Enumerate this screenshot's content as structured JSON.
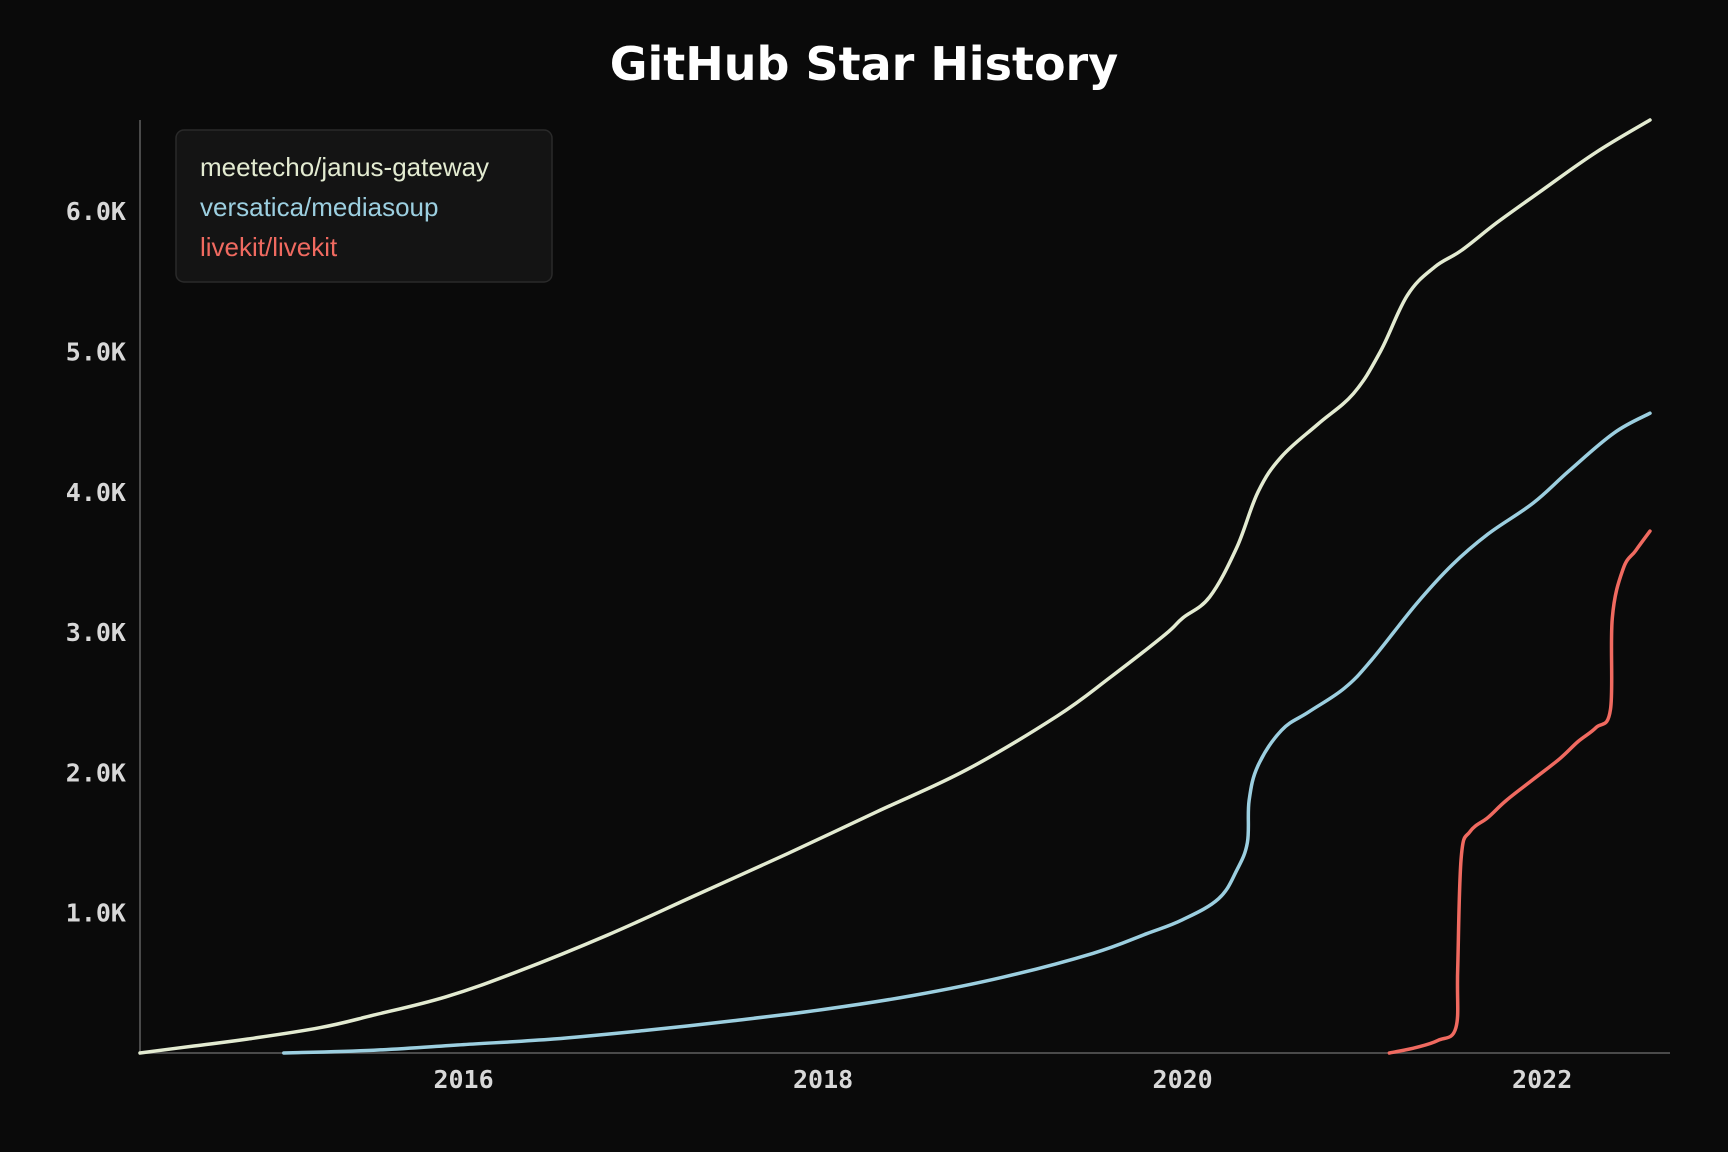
{
  "chart_data": {
    "type": "line",
    "title": "GitHub Star History",
    "xlabel": "",
    "ylabel": "",
    "x_ticks": [
      {
        "value": 2016,
        "label": "2016"
      },
      {
        "value": 2018,
        "label": "2018"
      },
      {
        "value": 2020,
        "label": "2020"
      },
      {
        "value": 2022,
        "label": "2022"
      }
    ],
    "y_ticks": [
      {
        "value": 1000,
        "label": "1.0K"
      },
      {
        "value": 2000,
        "label": "2.0K"
      },
      {
        "value": 3000,
        "label": "3.0K"
      },
      {
        "value": 4000,
        "label": "4.0K"
      },
      {
        "value": 5000,
        "label": "5.0K"
      },
      {
        "value": 6000,
        "label": "6.0K"
      }
    ],
    "xlim": [
      2014.2,
      2022.7
    ],
    "ylim": [
      0,
      6650
    ],
    "legend": "top-left",
    "grid": false,
    "series": [
      {
        "name": "meetecho/janus-gateway",
        "color": "#e3ebd1",
        "points": [
          [
            2014.2,
            0
          ],
          [
            2014.5,
            50
          ],
          [
            2014.8,
            100
          ],
          [
            2015.2,
            180
          ],
          [
            2015.5,
            270
          ],
          [
            2015.9,
            400
          ],
          [
            2016.3,
            580
          ],
          [
            2016.8,
            840
          ],
          [
            2017.3,
            1130
          ],
          [
            2017.8,
            1420
          ],
          [
            2018.3,
            1720
          ],
          [
            2018.8,
            2020
          ],
          [
            2019.3,
            2400
          ],
          [
            2019.6,
            2680
          ],
          [
            2019.9,
            2980
          ],
          [
            2020.0,
            3100
          ],
          [
            2020.15,
            3250
          ],
          [
            2020.3,
            3600
          ],
          [
            2020.42,
            4000
          ],
          [
            2020.55,
            4250
          ],
          [
            2020.75,
            4480
          ],
          [
            2020.95,
            4700
          ],
          [
            2021.1,
            5000
          ],
          [
            2021.25,
            5400
          ],
          [
            2021.4,
            5600
          ],
          [
            2021.55,
            5720
          ],
          [
            2021.75,
            5920
          ],
          [
            2022.0,
            6150
          ],
          [
            2022.3,
            6420
          ],
          [
            2022.6,
            6650
          ]
        ]
      },
      {
        "name": "versatica/mediasoup",
        "color": "#9ccfe0",
        "points": [
          [
            2015.0,
            0
          ],
          [
            2015.5,
            20
          ],
          [
            2016.0,
            60
          ],
          [
            2016.5,
            100
          ],
          [
            2017.0,
            160
          ],
          [
            2017.5,
            230
          ],
          [
            2018.0,
            310
          ],
          [
            2018.5,
            410
          ],
          [
            2019.0,
            540
          ],
          [
            2019.5,
            710
          ],
          [
            2019.8,
            850
          ],
          [
            2020.0,
            950
          ],
          [
            2020.2,
            1100
          ],
          [
            2020.3,
            1300
          ],
          [
            2020.36,
            1500
          ],
          [
            2020.37,
            1800
          ],
          [
            2020.42,
            2050
          ],
          [
            2020.55,
            2300
          ],
          [
            2020.7,
            2430
          ],
          [
            2020.9,
            2600
          ],
          [
            2021.05,
            2800
          ],
          [
            2021.3,
            3200
          ],
          [
            2021.5,
            3480
          ],
          [
            2021.7,
            3700
          ],
          [
            2021.95,
            3920
          ],
          [
            2022.15,
            4150
          ],
          [
            2022.4,
            4420
          ],
          [
            2022.6,
            4560
          ]
        ]
      },
      {
        "name": "livekit/livekit",
        "color": "#f06a60",
        "points": [
          [
            2021.15,
            0
          ],
          [
            2021.3,
            40
          ],
          [
            2021.42,
            90
          ],
          [
            2021.52,
            180
          ],
          [
            2021.53,
            600
          ],
          [
            2021.55,
            1400
          ],
          [
            2021.6,
            1580
          ],
          [
            2021.7,
            1680
          ],
          [
            2021.8,
            1800
          ],
          [
            2021.95,
            1950
          ],
          [
            2022.1,
            2100
          ],
          [
            2022.2,
            2220
          ],
          [
            2022.3,
            2320
          ],
          [
            2022.38,
            2450
          ],
          [
            2022.39,
            3100
          ],
          [
            2022.45,
            3450
          ],
          [
            2022.52,
            3580
          ],
          [
            2022.6,
            3720
          ]
        ]
      }
    ]
  }
}
